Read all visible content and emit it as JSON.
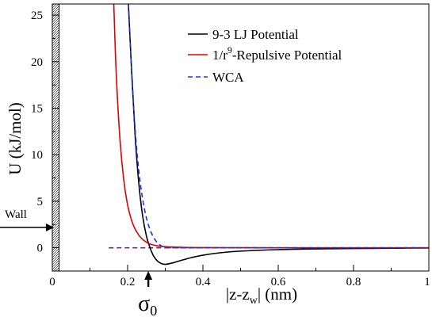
{
  "chart_data": {
    "type": "line",
    "xlabel_pre": "|z-z",
    "xlabel_sub": "w",
    "xlabel_post": "| (nm)",
    "ylabel": "U (kJ/mol)",
    "xlim": [
      0,
      1
    ],
    "ylim": [
      -2.5,
      26.2
    ],
    "x_ticks": [
      0,
      0.2,
      0.4,
      0.6,
      0.8,
      1
    ],
    "x_tick_labels": [
      "0",
      "0.2",
      "0.4",
      "0.6",
      "0.8",
      "1"
    ],
    "y_ticks": [
      0,
      5,
      10,
      15,
      20,
      25
    ],
    "y_tick_labels": [
      "0",
      "5",
      "10",
      "15",
      "20",
      "25"
    ],
    "wall_label": "Wall",
    "wall_region": [
      0,
      0.018
    ],
    "sigma_label": "σ",
    "sigma_sub": "0",
    "sigma_x": 0.255,
    "legend_position": "top-right",
    "reference_line": {
      "x": [
        0.15,
        1.0
      ],
      "y": 0,
      "color": "#7b2a6e",
      "style": "dashed"
    },
    "series": [
      {
        "name": "9-3 LJ Potential",
        "color": "#000000",
        "style": "solid",
        "x": [
          0.2,
          0.21,
          0.22,
          0.23,
          0.24,
          0.25,
          0.26,
          0.27,
          0.28,
          0.29,
          0.3,
          0.32,
          0.34,
          0.37,
          0.4,
          0.45,
          0.5,
          0.6,
          0.7,
          0.8,
          0.9,
          1.0
        ],
        "y": [
          28,
          19.5,
          12.0,
          6.8,
          3.4,
          1.25,
          -0.05,
          -0.95,
          -1.45,
          -1.7,
          -1.78,
          -1.62,
          -1.38,
          -1.05,
          -0.8,
          -0.52,
          -0.36,
          -0.2,
          -0.12,
          -0.08,
          -0.05,
          -0.03
        ]
      },
      {
        "name": "1/r<sup>9</sup>-Repulsive Potential",
        "name_pre": "1/r",
        "name_sup": "9",
        "name_post": "-Repulsive Potential",
        "color": "#e00000",
        "style": "solid",
        "x": [
          0.163,
          0.17,
          0.18,
          0.19,
          0.2,
          0.21,
          0.22,
          0.23,
          0.24,
          0.25,
          0.26,
          0.28,
          0.3,
          0.35,
          0.4,
          0.5,
          0.6,
          0.8,
          1.0
        ],
        "y": [
          26.5,
          18.5,
          11.5,
          7.2,
          4.6,
          3.0,
          2.0,
          1.35,
          0.9,
          0.6,
          0.4,
          0.2,
          0.11,
          0.04,
          0.02,
          0.01,
          0.0,
          0.0,
          0.0
        ]
      },
      {
        "name": "WCA",
        "color": "#1a33e6",
        "style": "dashed",
        "x": [
          0.2,
          0.21,
          0.22,
          0.23,
          0.24,
          0.25,
          0.26,
          0.27,
          0.28,
          0.29,
          0.3,
          0.32,
          0.35,
          0.4,
          0.5,
          0.6,
          0.8,
          1.0
        ],
        "y": [
          28,
          19.5,
          12.7,
          8.2,
          5.2,
          3.2,
          1.9,
          1.05,
          0.5,
          0.2,
          0.05,
          0.0,
          0.0,
          0.0,
          0.0,
          0.0,
          0.0,
          0.0
        ]
      }
    ]
  }
}
